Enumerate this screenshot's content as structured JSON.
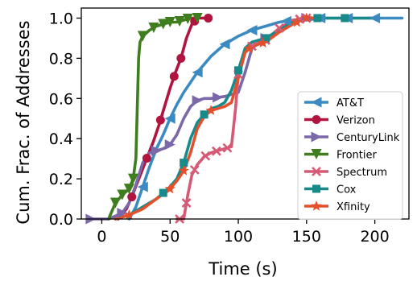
{
  "chart_data": {
    "type": "line",
    "title": "",
    "xlabel": "Time (s)",
    "ylabel": "Cum. Frac. of Addresses",
    "xlim": [
      -15,
      225
    ],
    "ylim": [
      0,
      1.05
    ],
    "xticks": [
      0,
      50,
      100,
      150,
      200
    ],
    "yticks": [
      0.0,
      0.2,
      0.4,
      0.6,
      0.8,
      1.0
    ],
    "grid": false,
    "legend": "lower-right",
    "series": [
      {
        "name": "AT&T",
        "color": "#3b8bc2",
        "marker": "triangle-left",
        "x": [
          20,
          25,
          30,
          35,
          40,
          45,
          50,
          55,
          60,
          65,
          70,
          75,
          80,
          85,
          90,
          95,
          100,
          110,
          120,
          130,
          140,
          150,
          160,
          170,
          180,
          190,
          200,
          210,
          220
        ],
        "y": [
          0.0,
          0.06,
          0.16,
          0.26,
          0.35,
          0.42,
          0.5,
          0.57,
          0.63,
          0.68,
          0.73,
          0.77,
          0.81,
          0.84,
          0.87,
          0.89,
          0.91,
          0.94,
          0.96,
          0.98,
          0.99,
          0.99,
          1.0,
          1.0,
          1.0,
          1.0,
          1.0,
          1.0,
          1.0
        ],
        "marker_x": [
          30,
          50,
          70,
          90,
          110,
          135,
          160,
          180,
          200
        ]
      },
      {
        "name": "Verizon",
        "color": "#b0143f",
        "marker": "circle",
        "x": [
          12,
          18,
          22,
          26,
          30,
          34,
          38,
          42,
          46,
          50,
          54,
          58,
          62,
          66,
          70,
          75,
          80
        ],
        "y": [
          0.0,
          0.05,
          0.11,
          0.18,
          0.25,
          0.32,
          0.39,
          0.47,
          0.56,
          0.65,
          0.73,
          0.8,
          0.9,
          0.97,
          1.0,
          1.0,
          1.0
        ],
        "marker_x": [
          22,
          33,
          43,
          53,
          58,
          68,
          78
        ]
      },
      {
        "name": "CenturyLink",
        "color": "#7a68a8",
        "marker": "triangle-right",
        "x": [
          -8,
          5,
          15,
          20,
          25,
          30,
          35,
          40,
          45,
          50,
          55,
          60,
          65,
          70,
          75,
          80,
          90,
          100,
          105,
          110,
          120,
          130,
          140,
          150,
          160
        ],
        "y": [
          0.0,
          0.0,
          0.03,
          0.08,
          0.17,
          0.28,
          0.33,
          0.34,
          0.35,
          0.37,
          0.42,
          0.5,
          0.56,
          0.59,
          0.6,
          0.6,
          0.61,
          0.63,
          0.73,
          0.85,
          0.9,
          0.94,
          0.98,
          1.0,
          1.0
        ],
        "marker_x": [
          -8,
          15,
          40,
          50,
          70,
          85,
          120,
          150
        ]
      },
      {
        "name": "Frontier",
        "color": "#3f7d1f",
        "marker": "triangle-down",
        "x": [
          5,
          10,
          15,
          20,
          23,
          25,
          26,
          27,
          28,
          30,
          35,
          40,
          45,
          50,
          55,
          60,
          65,
          70
        ],
        "y": [
          0.0,
          0.08,
          0.12,
          0.15,
          0.2,
          0.3,
          0.55,
          0.8,
          0.88,
          0.91,
          0.94,
          0.96,
          0.97,
          0.98,
          0.98,
          0.99,
          1.0,
          1.0
        ],
        "marker_x": [
          10,
          15,
          20,
          23,
          30,
          38,
          45,
          50,
          57,
          63,
          70
        ]
      },
      {
        "name": "Spectrum",
        "color": "#d65a75",
        "marker": "x",
        "x": [
          55,
          60,
          63,
          66,
          70,
          75,
          80,
          85,
          90,
          95,
          98,
          100,
          103,
          106,
          110,
          120,
          130,
          140,
          150
        ],
        "y": [
          0.0,
          0.0,
          0.12,
          0.22,
          0.27,
          0.31,
          0.33,
          0.34,
          0.35,
          0.36,
          0.55,
          0.72,
          0.8,
          0.84,
          0.86,
          0.89,
          0.95,
          0.99,
          1.0
        ],
        "marker_x": [
          57,
          62,
          68,
          76,
          84,
          92,
          100,
          110,
          120,
          130,
          145,
          150
        ]
      },
      {
        "name": "Cox",
        "color": "#188a8a",
        "marker": "square",
        "x": [
          10,
          20,
          30,
          40,
          50,
          55,
          60,
          65,
          70,
          75,
          80,
          85,
          90,
          95,
          100,
          105,
          110,
          120,
          130,
          140,
          150,
          160,
          180,
          200
        ],
        "y": [
          0.0,
          0.02,
          0.06,
          0.1,
          0.16,
          0.2,
          0.28,
          0.4,
          0.48,
          0.52,
          0.55,
          0.56,
          0.58,
          0.64,
          0.74,
          0.85,
          0.88,
          0.9,
          0.94,
          0.98,
          1.0,
          1.0,
          1.0,
          1.0
        ],
        "marker_x": [
          45,
          60,
          75,
          100,
          120,
          158,
          178
        ]
      },
      {
        "name": "Xfinity",
        "color": "#e5502c",
        "marker": "star",
        "x": [
          10,
          20,
          30,
          40,
          50,
          55,
          60,
          65,
          70,
          75,
          80,
          85,
          90,
          95,
          100,
          105,
          110,
          120,
          130,
          140,
          150,
          160
        ],
        "y": [
          0.0,
          0.02,
          0.05,
          0.1,
          0.15,
          0.19,
          0.24,
          0.33,
          0.45,
          0.51,
          0.54,
          0.55,
          0.56,
          0.58,
          0.7,
          0.83,
          0.86,
          0.88,
          0.93,
          0.97,
          1.0,
          1.0
        ],
        "marker_x": [
          20,
          50,
          60,
          80,
          108,
          118,
          143,
          150
        ]
      }
    ]
  }
}
